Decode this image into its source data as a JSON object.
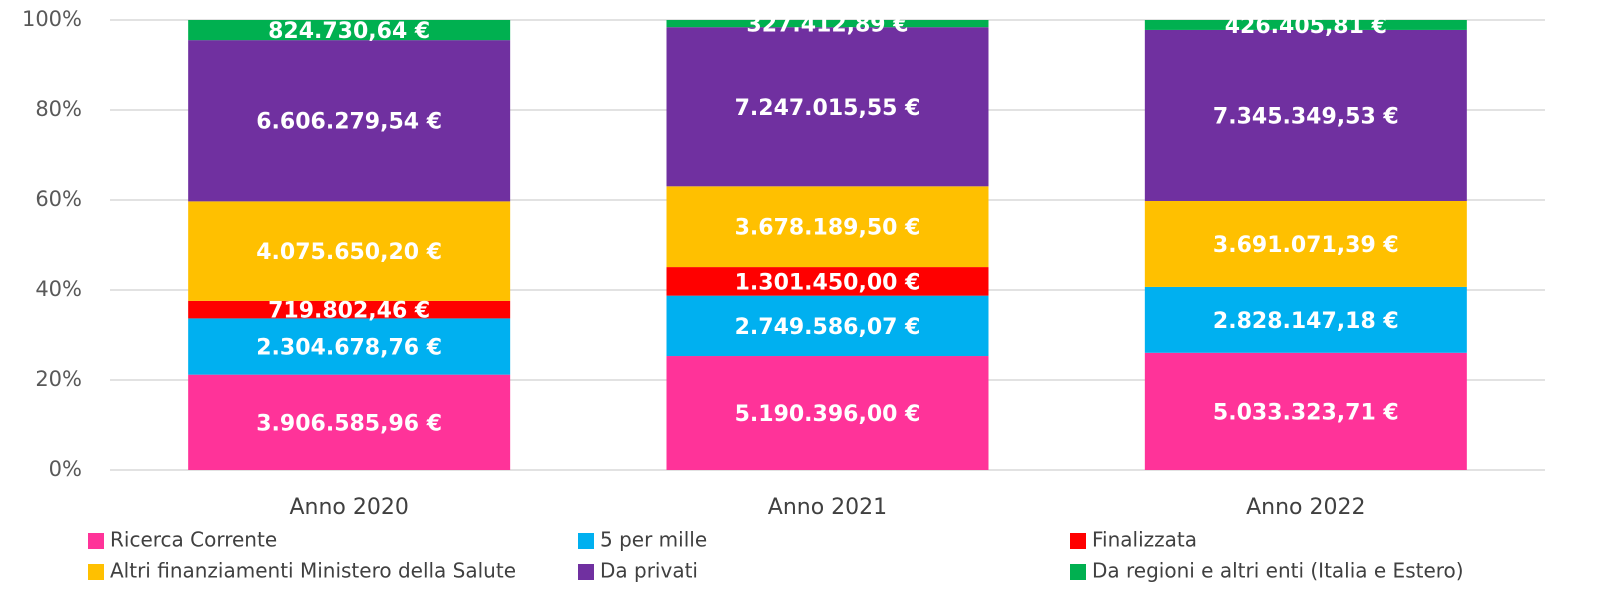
{
  "chart_data": {
    "type": "bar",
    "stacking": "percent",
    "categories": [
      "Anno 2020",
      "Anno 2021",
      "Anno 2022"
    ],
    "ylim": [
      0,
      100
    ],
    "yticks": [
      {
        "value": 0,
        "label": "0%"
      },
      {
        "value": 20,
        "label": "20%"
      },
      {
        "value": 40,
        "label": "40%"
      },
      {
        "value": 60,
        "label": "60%"
      },
      {
        "value": 80,
        "label": "80%"
      },
      {
        "value": 100,
        "label": "100%"
      }
    ],
    "grid": true,
    "series": [
      {
        "name": "Ricerca Corrente",
        "color": "#ff3399",
        "values": [
          3906585.96,
          5190396.0,
          5033323.71
        ],
        "value_labels": [
          "3.906.585,96 €",
          "5.190.396,00 €",
          "5.033.323,71 €"
        ]
      },
      {
        "name": "5 per mille",
        "color": "#00b0f0",
        "values": [
          2304678.76,
          2749586.07,
          2828147.18
        ],
        "value_labels": [
          "2.304.678,76 €",
          "2.749.586,07 €",
          "2.828.147,18 €"
        ]
      },
      {
        "name": "Finalizzata",
        "color": "#ff0000",
        "values": [
          719802.46,
          1301450.0,
          null
        ],
        "value_labels": [
          "719.802,46 €",
          "1.301.450,00 €",
          null
        ]
      },
      {
        "name": "Altri finanziamenti Ministero della Salute",
        "color": "#ffc000",
        "values": [
          4075650.2,
          3678189.5,
          3691071.39
        ],
        "value_labels": [
          "4.075.650,20 €",
          "3.678.189,50 €",
          "3.691.071,39 €"
        ]
      },
      {
        "name": "Da privati",
        "color": "#7030a0",
        "values": [
          6606279.54,
          7247015.55,
          7345349.53
        ],
        "value_labels": [
          "6.606.279,54 €",
          "7.247.015,55 €",
          "7.345.349,53 €"
        ]
      },
      {
        "name": "Da regioni e altri enti (Italia e Estero)",
        "color": "#00b050",
        "values": [
          824730.64,
          327412.89,
          426405.81
        ],
        "value_labels": [
          "824.730,64 €",
          "327.412,89 €",
          "426.405,81 €"
        ]
      }
    ]
  }
}
